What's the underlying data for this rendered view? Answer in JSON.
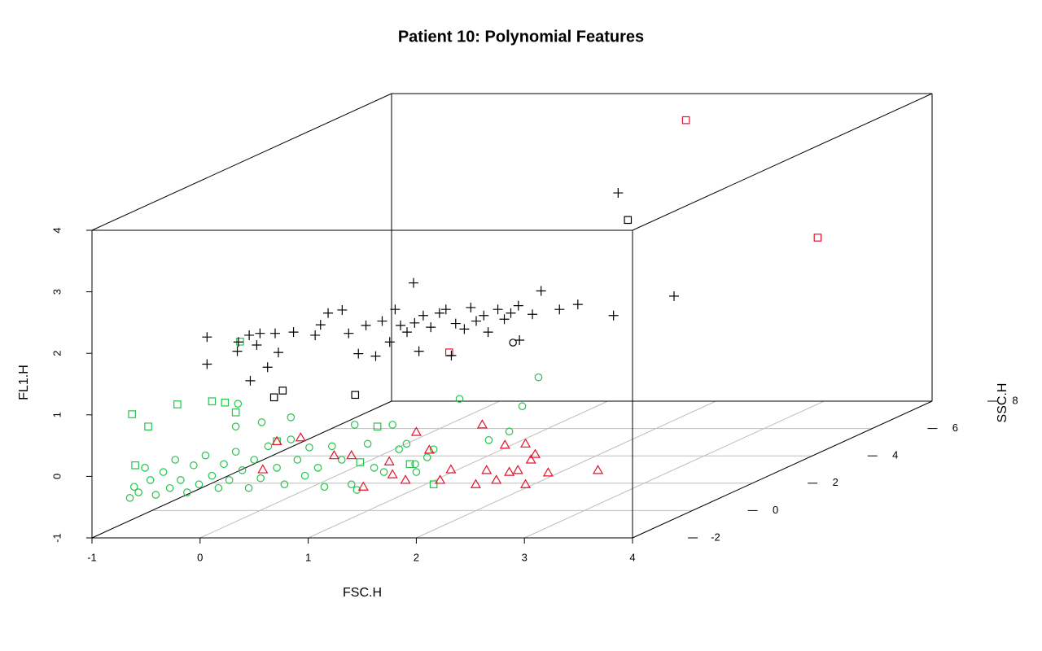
{
  "chart_data": {
    "type": "scatter3d",
    "title": "Patient 10: Polynomial Features",
    "xlabel": "FSC.H",
    "ylabel": "SSC.H",
    "zlabel": "FL1.H",
    "xlim": [
      -1,
      4
    ],
    "xticks": [
      -1,
      0,
      1,
      2,
      3,
      4
    ],
    "ylim": [
      -2,
      8
    ],
    "yticks": [
      -2,
      0,
      2,
      4,
      6,
      8
    ],
    "zlim": [
      -1,
      4
    ],
    "zticks": [
      -1,
      0,
      1,
      2,
      3,
      4
    ],
    "grid": true,
    "series": [
      {
        "color": "#22c44c",
        "symbol": "circle",
        "x": [
          -0.65,
          -0.61,
          -0.57,
          -0.51,
          -0.46,
          -0.41,
          -0.34,
          -0.28,
          -0.23,
          -0.18,
          -0.12,
          -0.06,
          -0.01,
          0.05,
          0.11,
          0.17,
          0.22,
          0.27,
          0.33,
          0.39,
          0.45,
          0.5,
          0.56,
          0.63,
          0.71,
          0.78,
          0.84,
          0.9,
          0.97,
          1.01,
          1.09,
          1.15,
          1.22,
          1.31,
          1.4,
          1.45,
          1.43,
          1.55,
          1.61,
          1.7,
          1.78,
          1.84,
          1.91,
          1.99,
          2.0,
          2.1,
          2.16,
          2.4,
          2.67,
          2.86,
          2.98,
          3.13,
          0.84,
          0.57,
          0.33,
          0.35
        ],
        "y": [
          -2,
          -2,
          -2,
          -2,
          -2,
          -2,
          -2,
          -2,
          -2,
          -2,
          -2,
          -2,
          -2,
          -2,
          -2,
          -2,
          -2,
          -2,
          -2,
          -2,
          -2,
          -2,
          -2,
          -2,
          -2,
          -2,
          -2,
          -2,
          -2,
          -2,
          -2,
          -2,
          -2,
          -2,
          -2,
          -2,
          -2,
          -2,
          -2,
          -2,
          -2,
          -2,
          -2,
          -2,
          -2,
          -2,
          -2,
          -2,
          -2,
          -2,
          -2,
          -2,
          -2,
          -2,
          -2,
          -2
        ],
        "z": [
          -0.35,
          -0.17,
          -0.26,
          0.14,
          -0.06,
          -0.3,
          0.07,
          -0.19,
          0.27,
          -0.06,
          -0.26,
          0.18,
          -0.13,
          0.34,
          0.01,
          -0.19,
          0.2,
          -0.06,
          0.4,
          0.1,
          -0.19,
          0.27,
          -0.03,
          0.49,
          0.14,
          -0.13,
          0.6,
          0.27,
          0.01,
          0.47,
          0.14,
          -0.17,
          0.49,
          0.27,
          -0.13,
          -0.22,
          0.84,
          0.53,
          0.14,
          0.07,
          0.84,
          0.44,
          0.53,
          0.2,
          0.07,
          0.31,
          0.44,
          1.26,
          0.59,
          0.73,
          1.14,
          1.61,
          0.96,
          0.88,
          0.81,
          1.18
        ]
      },
      {
        "color": "#22c44c",
        "symbol": "square",
        "x": [
          -0.63,
          -0.48,
          -0.21,
          0.11,
          0.23,
          0.33,
          0.37,
          0.71,
          1.48,
          1.64,
          1.94,
          2.16,
          -0.6
        ],
        "y": [
          -2,
          -2,
          -2,
          -2,
          -2,
          -2,
          -2,
          -2,
          -2,
          -2,
          -2,
          -2,
          -2
        ],
        "z": [
          1.01,
          0.81,
          1.17,
          1.22,
          1.2,
          1.04,
          2.19,
          0.57,
          0.23,
          0.81,
          0.2,
          -0.13,
          0.18
        ]
      },
      {
        "color": "#e8102a",
        "symbol": "triangle",
        "x": [
          0.71,
          0.93,
          1.24,
          1.4,
          1.51,
          1.75,
          1.78,
          1.9,
          2.0,
          2.12,
          2.22,
          2.32,
          2.55,
          2.61,
          2.65,
          2.74,
          2.82,
          2.86,
          2.94,
          3.01,
          3.06,
          3.1,
          3.22,
          3.68,
          3.01,
          0.58
        ],
        "y": [
          -2,
          -2,
          -2,
          -2,
          -2,
          -2,
          -2,
          -2,
          -2,
          -2,
          -2,
          -2,
          -2,
          -2,
          -2,
          -2,
          -2,
          -2,
          -2,
          -2,
          -2,
          -2,
          -2,
          -2,
          -2,
          -2
        ],
        "z": [
          0.57,
          0.63,
          0.34,
          0.34,
          -0.17,
          0.24,
          0.03,
          -0.06,
          0.72,
          0.43,
          -0.06,
          0.11,
          -0.13,
          0.84,
          0.1,
          -0.06,
          0.51,
          0.07,
          0.1,
          0.53,
          0.27,
          0.36,
          0.06,
          0.1,
          -0.13,
          0.11
        ]
      },
      {
        "color": "#e8102a",
        "symbol": "square",
        "x": [
          1.75,
          2.0,
          3.08
        ],
        "y": [
          0,
          7,
          7.5
        ],
        "z": [
          1.57,
          3.79,
          1.77
        ]
      },
      {
        "color": "#000000",
        "symbol": "cross",
        "x": [
          -0.49,
          -0.49,
          -0.2,
          -0.21,
          -0.09,
          -0.1,
          -0.03,
          0.07,
          0.0,
          0.14,
          0.17,
          0.31,
          0.51,
          0.56,
          0.63,
          0.76,
          0.82,
          0.91,
          0.98,
          1.07,
          1.13,
          1.2,
          1.25,
          1.3,
          1.36,
          1.43,
          1.42,
          1.47,
          1.51,
          1.58,
          1.66,
          1.72,
          1.77,
          1.81,
          1.89,
          1.95,
          2.0,
          2.07,
          2.11,
          2.2,
          2.26,
          2.32,
          2.39,
          2.4,
          2.52,
          2.6,
          2.77,
          2.94,
          3.27,
          1.65,
          1.89
        ],
        "y": [
          0,
          0,
          0,
          0,
          0,
          0,
          0,
          0,
          0,
          0,
          0,
          0,
          0,
          0,
          0,
          0,
          0,
          0,
          0,
          0,
          0,
          0,
          0,
          0,
          0,
          0,
          0,
          0,
          0,
          0,
          0,
          0,
          0,
          0,
          0,
          0,
          0,
          0,
          0,
          0,
          0,
          0,
          0,
          0,
          0,
          0,
          0,
          0,
          0,
          6,
          7
        ],
        "z": [
          1.82,
          1.38,
          1.74,
          1.59,
          1.11,
          1.85,
          1.69,
          1.33,
          1.88,
          1.88,
          1.57,
          1.9,
          1.85,
          2.02,
          2.21,
          2.26,
          1.88,
          1.55,
          2.01,
          1.51,
          2.08,
          1.74,
          2.27,
          2.01,
          1.9,
          2.05,
          2.7,
          1.59,
          2.17,
          1.98,
          2.21,
          2.27,
          1.52,
          2.04,
          1.95,
          2.3,
          2.08,
          2.17,
          1.9,
          2.27,
          2.11,
          2.21,
          2.33,
          1.77,
          2.19,
          2.57,
          2.27,
          2.35,
          2.17,
          2.83,
          0.93
        ]
      },
      {
        "color": "#000000",
        "symbol": "square",
        "x": [
          0.13,
          0.21,
          0.88,
          1.74
        ],
        "y": [
          0,
          0,
          0,
          6
        ],
        "z": [
          0.84,
          0.95,
          0.88,
          2.39
        ]
      },
      {
        "color": "#000000",
        "symbol": "circle",
        "x": [
          2.34
        ],
        "y": [
          0
        ],
        "z": [
          1.73
        ]
      }
    ]
  }
}
